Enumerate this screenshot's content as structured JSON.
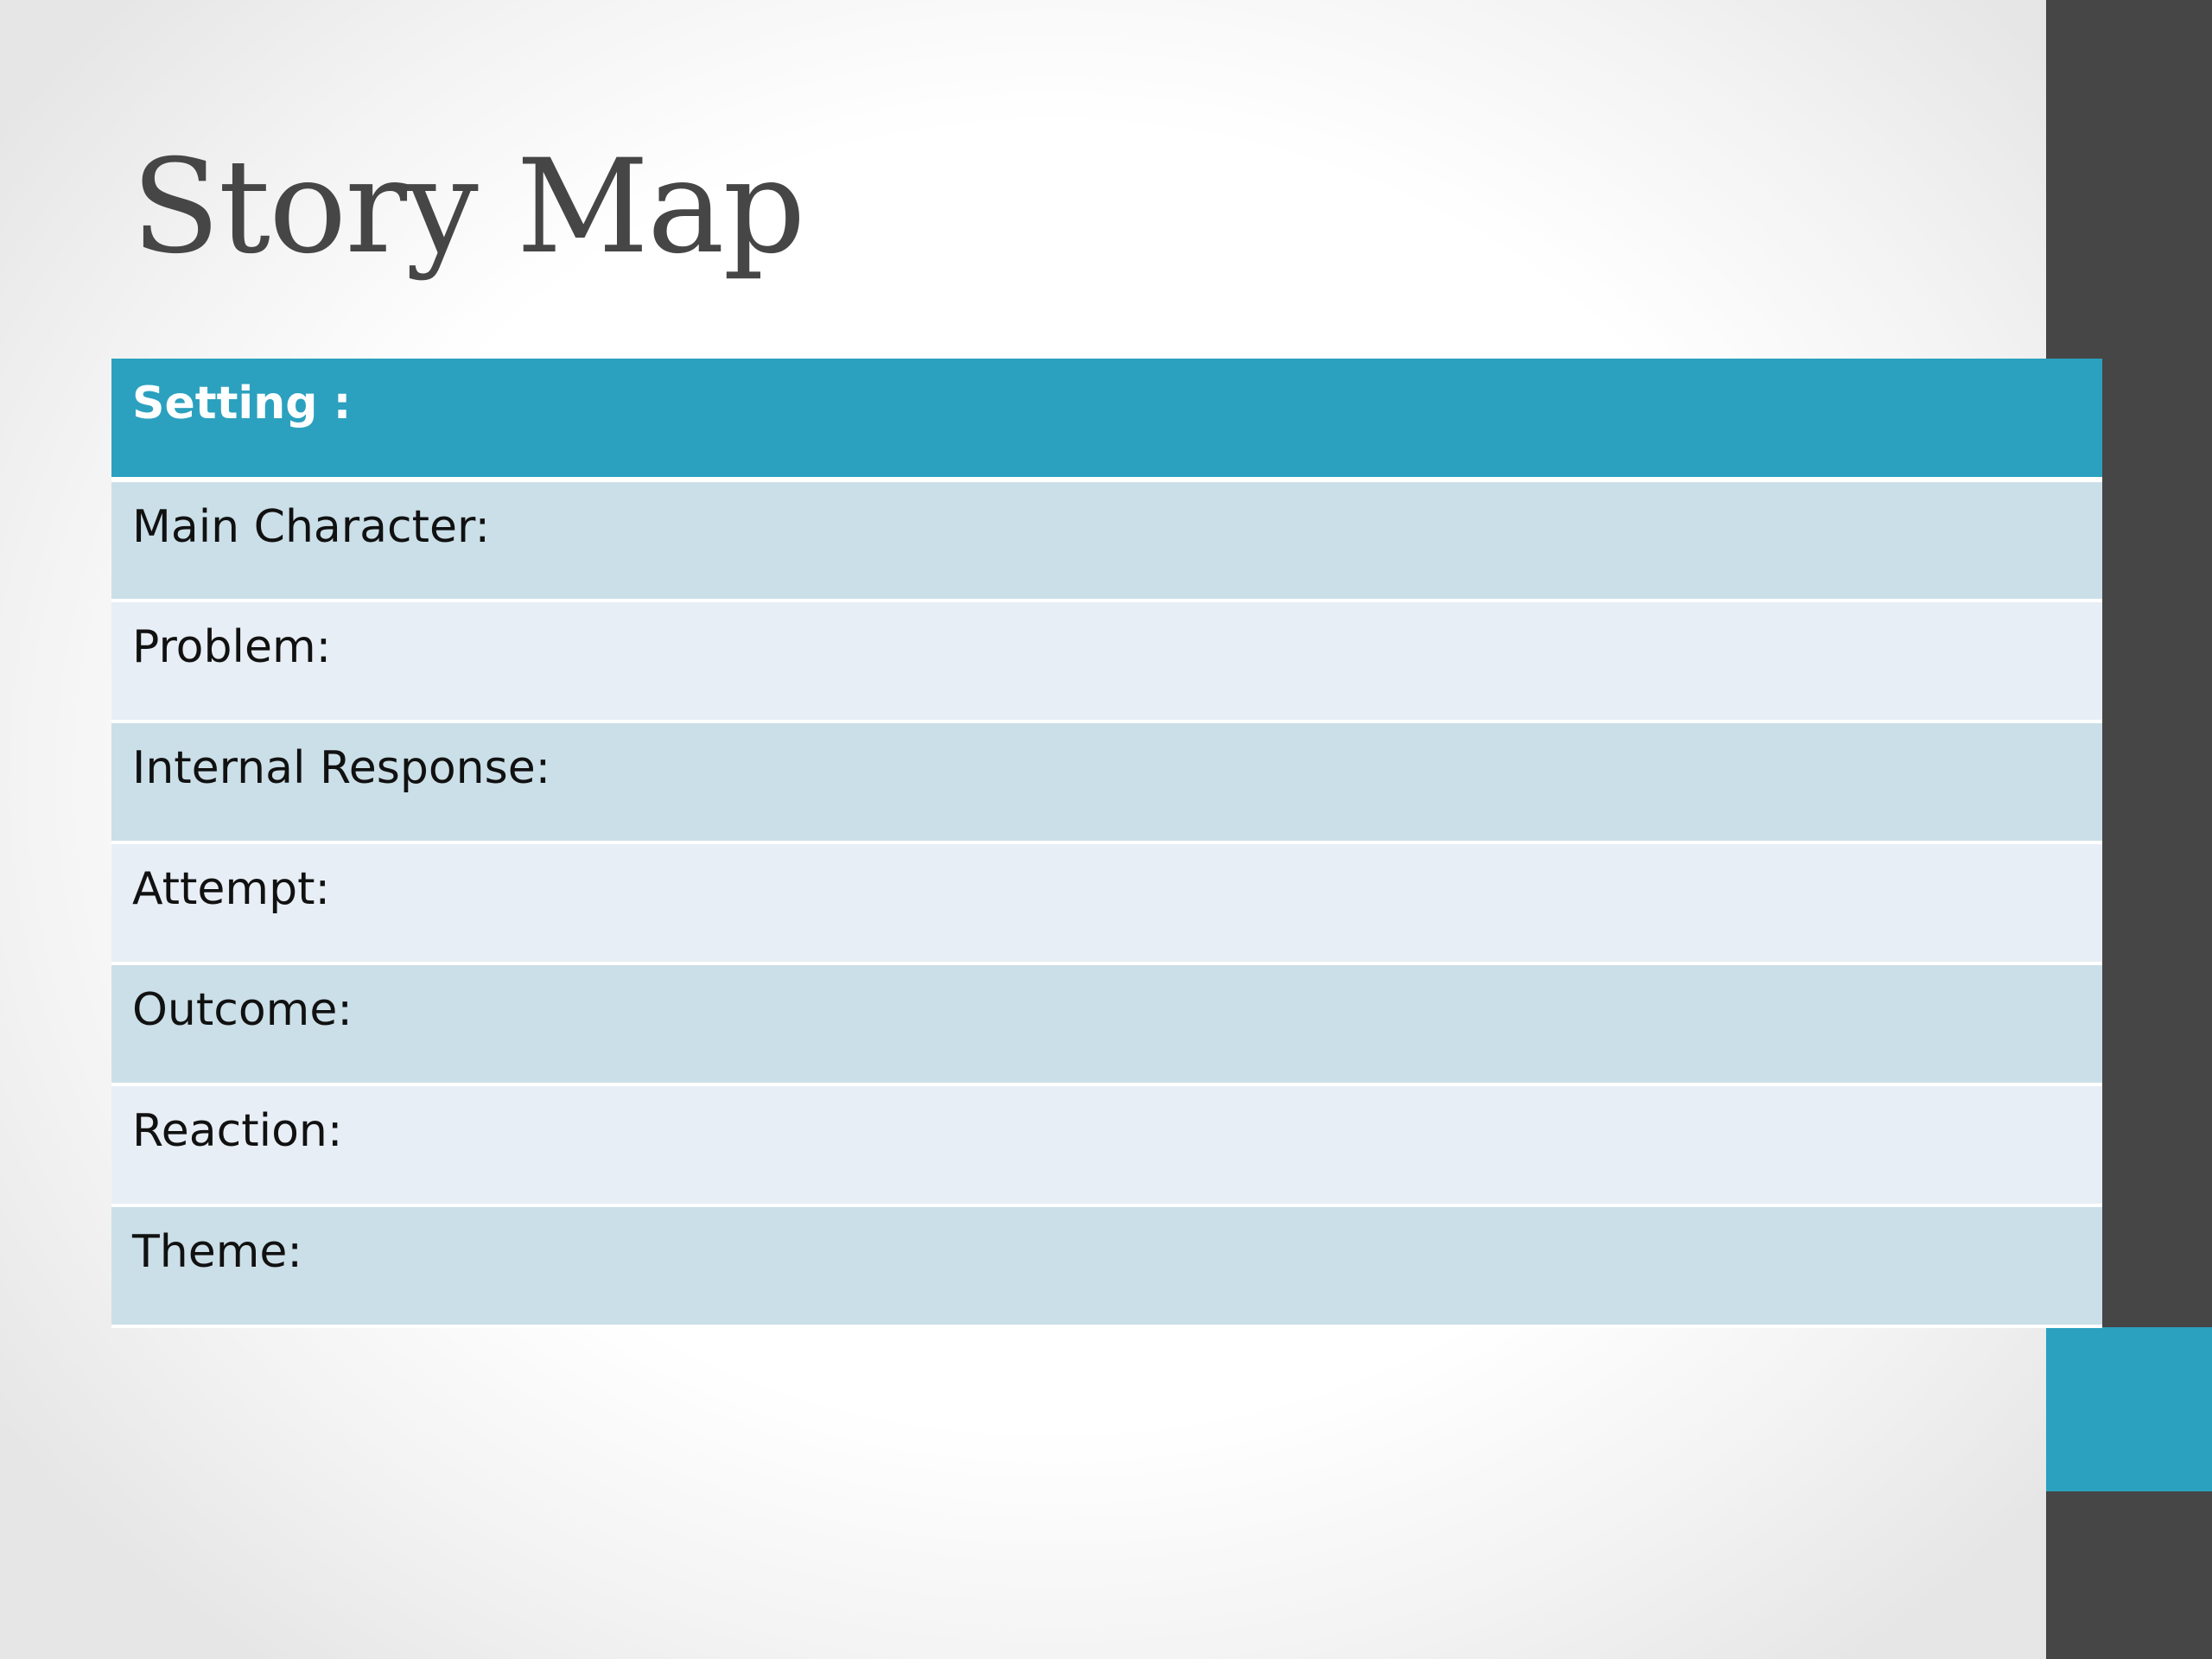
{
  "slide": {
    "title": "Story Map",
    "colors": {
      "accent": "#2ba1bf",
      "side_bar": "#464646",
      "row_dark": "#cbdfe8",
      "row_light": "#e8eef5"
    }
  },
  "table": {
    "rows": [
      {
        "label": "Setting :"
      },
      {
        "label": "Main Character:"
      },
      {
        "label": "Problem:"
      },
      {
        "label": "Internal Response:"
      },
      {
        "label": "Attempt:"
      },
      {
        "label": "Outcome:"
      },
      {
        "label": "Reaction:"
      },
      {
        "label": "Theme:"
      }
    ]
  }
}
